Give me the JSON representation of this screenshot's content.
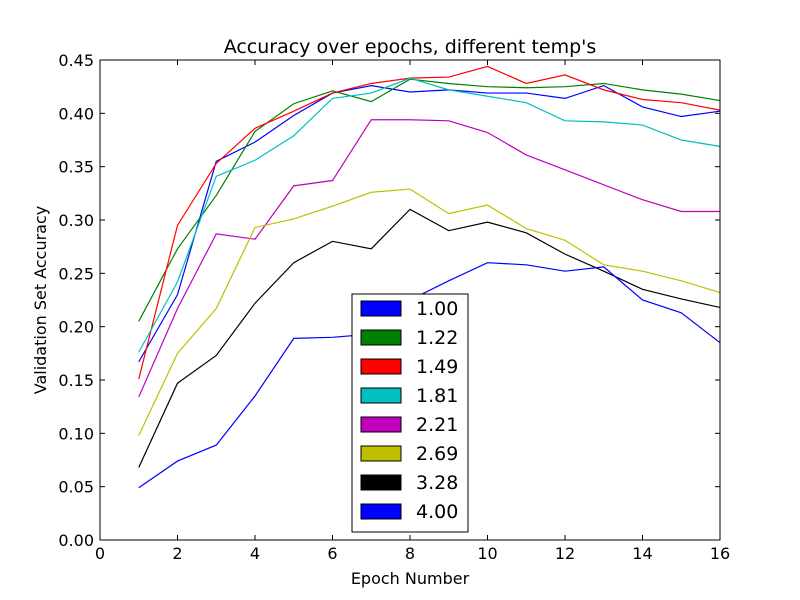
{
  "chart_data": {
    "type": "line",
    "title": "Accuracy over epochs, different temp's",
    "xlabel": "Epoch Number",
    "ylabel": "Validation Set Accuracy",
    "xlim": [
      0,
      16
    ],
    "ylim": [
      0.0,
      0.45
    ],
    "xticks": [
      "0",
      "2",
      "4",
      "6",
      "8",
      "10",
      "12",
      "14",
      "16"
    ],
    "yticks": [
      "0.00",
      "0.05",
      "0.10",
      "0.15",
      "0.20",
      "0.25",
      "0.30",
      "0.35",
      "0.40",
      "0.45"
    ],
    "grid": false,
    "legend_position": "bottom-center",
    "x": [
      1,
      2,
      3,
      4,
      5,
      6,
      7,
      8,
      9,
      10,
      11,
      12,
      13,
      14,
      15,
      16
    ],
    "series": [
      {
        "name": "1.00",
        "color": "#0000ff",
        "values": [
          0.167,
          0.23,
          0.355,
          0.373,
          0.398,
          0.419,
          0.426,
          0.42,
          0.422,
          0.419,
          0.419,
          0.414,
          0.426,
          0.406,
          0.397,
          0.402
        ]
      },
      {
        "name": "1.22",
        "color": "#008000",
        "values": [
          0.205,
          0.273,
          0.323,
          0.383,
          0.409,
          0.421,
          0.411,
          0.432,
          0.428,
          0.425,
          0.424,
          0.425,
          0.428,
          0.422,
          0.418,
          0.412
        ]
      },
      {
        "name": "1.49",
        "color": "#ff0000",
        "values": [
          0.151,
          0.295,
          0.353,
          0.386,
          0.402,
          0.419,
          0.428,
          0.433,
          0.434,
          0.444,
          0.428,
          0.436,
          0.422,
          0.413,
          0.41,
          0.403
        ]
      },
      {
        "name": "1.81",
        "color": "#00bfbf",
        "values": [
          0.176,
          0.242,
          0.341,
          0.356,
          0.379,
          0.414,
          0.419,
          0.433,
          0.422,
          0.416,
          0.41,
          0.393,
          0.392,
          0.389,
          0.375,
          0.369
        ]
      },
      {
        "name": "2.21",
        "color": "#bf00bf",
        "values": [
          0.134,
          0.217,
          0.287,
          0.282,
          0.332,
          0.337,
          0.394,
          0.394,
          0.393,
          0.382,
          0.361,
          0.347,
          0.333,
          0.319,
          0.308,
          0.308
        ]
      },
      {
        "name": "2.69",
        "color": "#bfbf00",
        "values": [
          0.098,
          0.175,
          0.217,
          0.293,
          0.301,
          0.313,
          0.326,
          0.329,
          0.306,
          0.314,
          0.292,
          0.281,
          0.258,
          0.252,
          0.243,
          0.232
        ]
      },
      {
        "name": "3.28",
        "color": "#000000",
        "values": [
          0.068,
          0.147,
          0.173,
          0.222,
          0.26,
          0.28,
          0.273,
          0.31,
          0.29,
          0.298,
          0.288,
          0.268,
          0.252,
          0.235,
          0.226,
          0.218
        ]
      },
      {
        "name": "4.00",
        "color": "#0000ff",
        "values": [
          0.049,
          0.074,
          0.089,
          0.135,
          0.189,
          0.19,
          0.193,
          0.225,
          0.243,
          0.26,
          0.258,
          0.252,
          0.256,
          0.225,
          0.213,
          0.185
        ]
      }
    ]
  }
}
